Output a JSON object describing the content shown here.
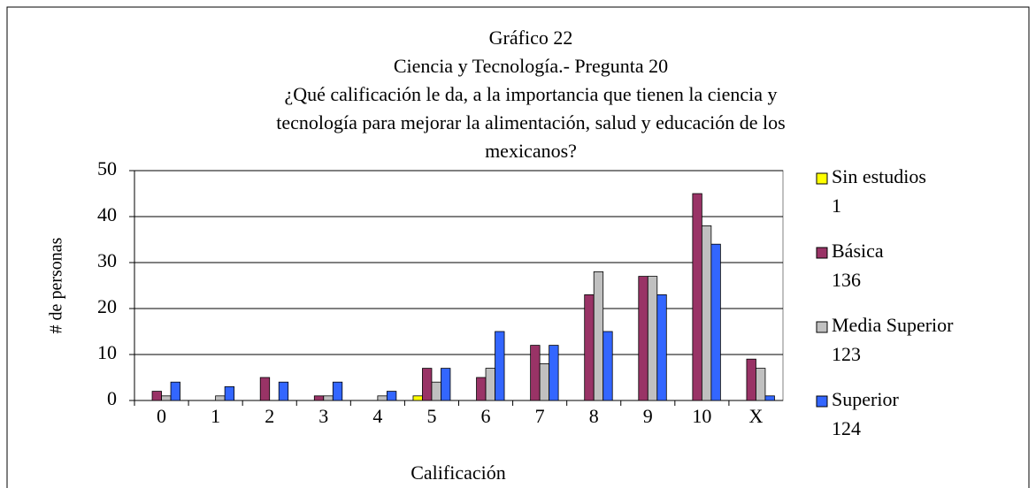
{
  "chart_data": {
    "type": "bar",
    "title": "Gráfico 22",
    "subtitle": "Ciencia y Tecnología.- Pregunta 20",
    "question_lines": [
      "¿Qué calificación le da, a la importancia que tienen la ciencia y",
      "tecnología para mejorar la alimentación, salud y educación de los",
      "mexicanos?"
    ],
    "x_label": "Calificación",
    "y_label": "# de personas",
    "categories": [
      "0",
      "1",
      "2",
      "3",
      "4",
      "5",
      "6",
      "7",
      "8",
      "9",
      "10",
      "X"
    ],
    "series": [
      {
        "name": "Sin estudios",
        "total": 1,
        "color": "#ffff00",
        "values": [
          0,
          0,
          0,
          0,
          0,
          1,
          0,
          0,
          0,
          0,
          0,
          0
        ]
      },
      {
        "name": "Básica",
        "total": 136,
        "color": "#993366",
        "values": [
          2,
          0,
          5,
          1,
          0,
          7,
          5,
          12,
          23,
          27,
          45,
          9
        ]
      },
      {
        "name": "Media Superior",
        "total": 123,
        "color": "#c0c0c0",
        "values": [
          1,
          1,
          0,
          1,
          1,
          4,
          7,
          8,
          28,
          27,
          38,
          7
        ]
      },
      {
        "name": "Superior",
        "total": 124,
        "color": "#3366ff",
        "values": [
          4,
          3,
          4,
          4,
          2,
          7,
          15,
          12,
          15,
          23,
          34,
          1
        ]
      }
    ],
    "ylim": [
      0,
      50
    ],
    "yticks": [
      0,
      10,
      20,
      30,
      40,
      50
    ],
    "grid": true,
    "legend": "right"
  }
}
